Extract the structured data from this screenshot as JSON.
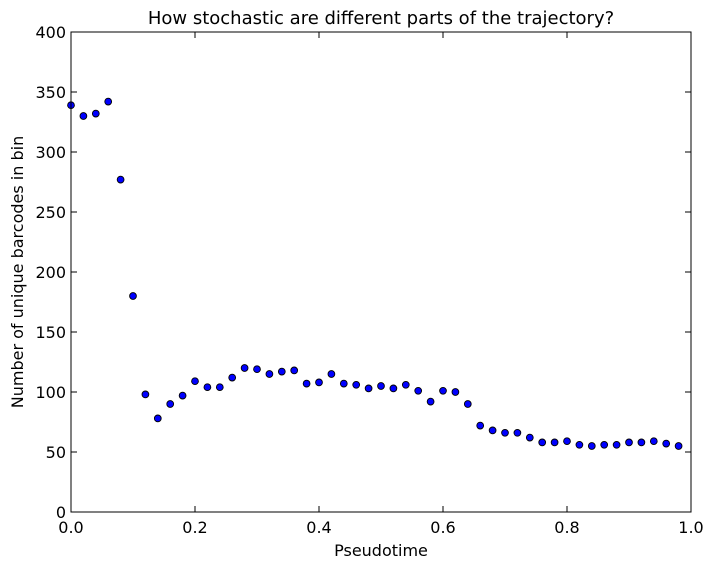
{
  "chart_data": {
    "type": "scatter",
    "title": "How stochastic are different parts of the trajectory?",
    "xlabel": "Pseudotime",
    "ylabel": "Number of unique barcodes in bin",
    "xlim": [
      0.0,
      1.0
    ],
    "ylim": [
      0,
      400
    ],
    "xticks": [
      0.0,
      0.2,
      0.4,
      0.6,
      0.8,
      1.0
    ],
    "xtick_labels": [
      "0.0",
      "0.2",
      "0.4",
      "0.6",
      "0.8",
      "1.0"
    ],
    "yticks": [
      0,
      50,
      100,
      150,
      200,
      250,
      300,
      350,
      400
    ],
    "ytick_labels": [
      "0",
      "50",
      "100",
      "150",
      "200",
      "250",
      "300",
      "350",
      "400"
    ],
    "grid": false,
    "marker_color": "#0000ff",
    "marker_edge_color": "#000000",
    "series": [
      {
        "x": [
          0.0,
          0.02,
          0.04,
          0.06,
          0.08,
          0.1,
          0.12,
          0.14,
          0.16,
          0.18,
          0.2,
          0.22,
          0.24,
          0.26,
          0.28,
          0.3,
          0.32,
          0.34,
          0.36,
          0.38,
          0.4,
          0.42,
          0.44,
          0.46,
          0.48,
          0.5,
          0.52,
          0.54,
          0.56,
          0.58,
          0.6,
          0.62,
          0.64,
          0.66,
          0.68,
          0.7,
          0.72,
          0.74,
          0.76,
          0.78,
          0.8,
          0.82,
          0.84,
          0.86,
          0.88,
          0.9,
          0.92,
          0.94,
          0.96,
          0.98
        ],
        "y": [
          339,
          330,
          332,
          342,
          277,
          180,
          98,
          78,
          90,
          97,
          109,
          104,
          104,
          112,
          120,
          119,
          115,
          117,
          118,
          107,
          108,
          115,
          107,
          106,
          103,
          105,
          103,
          106,
          101,
          92,
          101,
          100,
          90,
          72,
          68,
          66,
          66,
          62,
          58,
          58,
          59,
          56,
          55,
          56,
          56,
          58,
          58,
          59,
          57,
          55
        ]
      }
    ]
  }
}
